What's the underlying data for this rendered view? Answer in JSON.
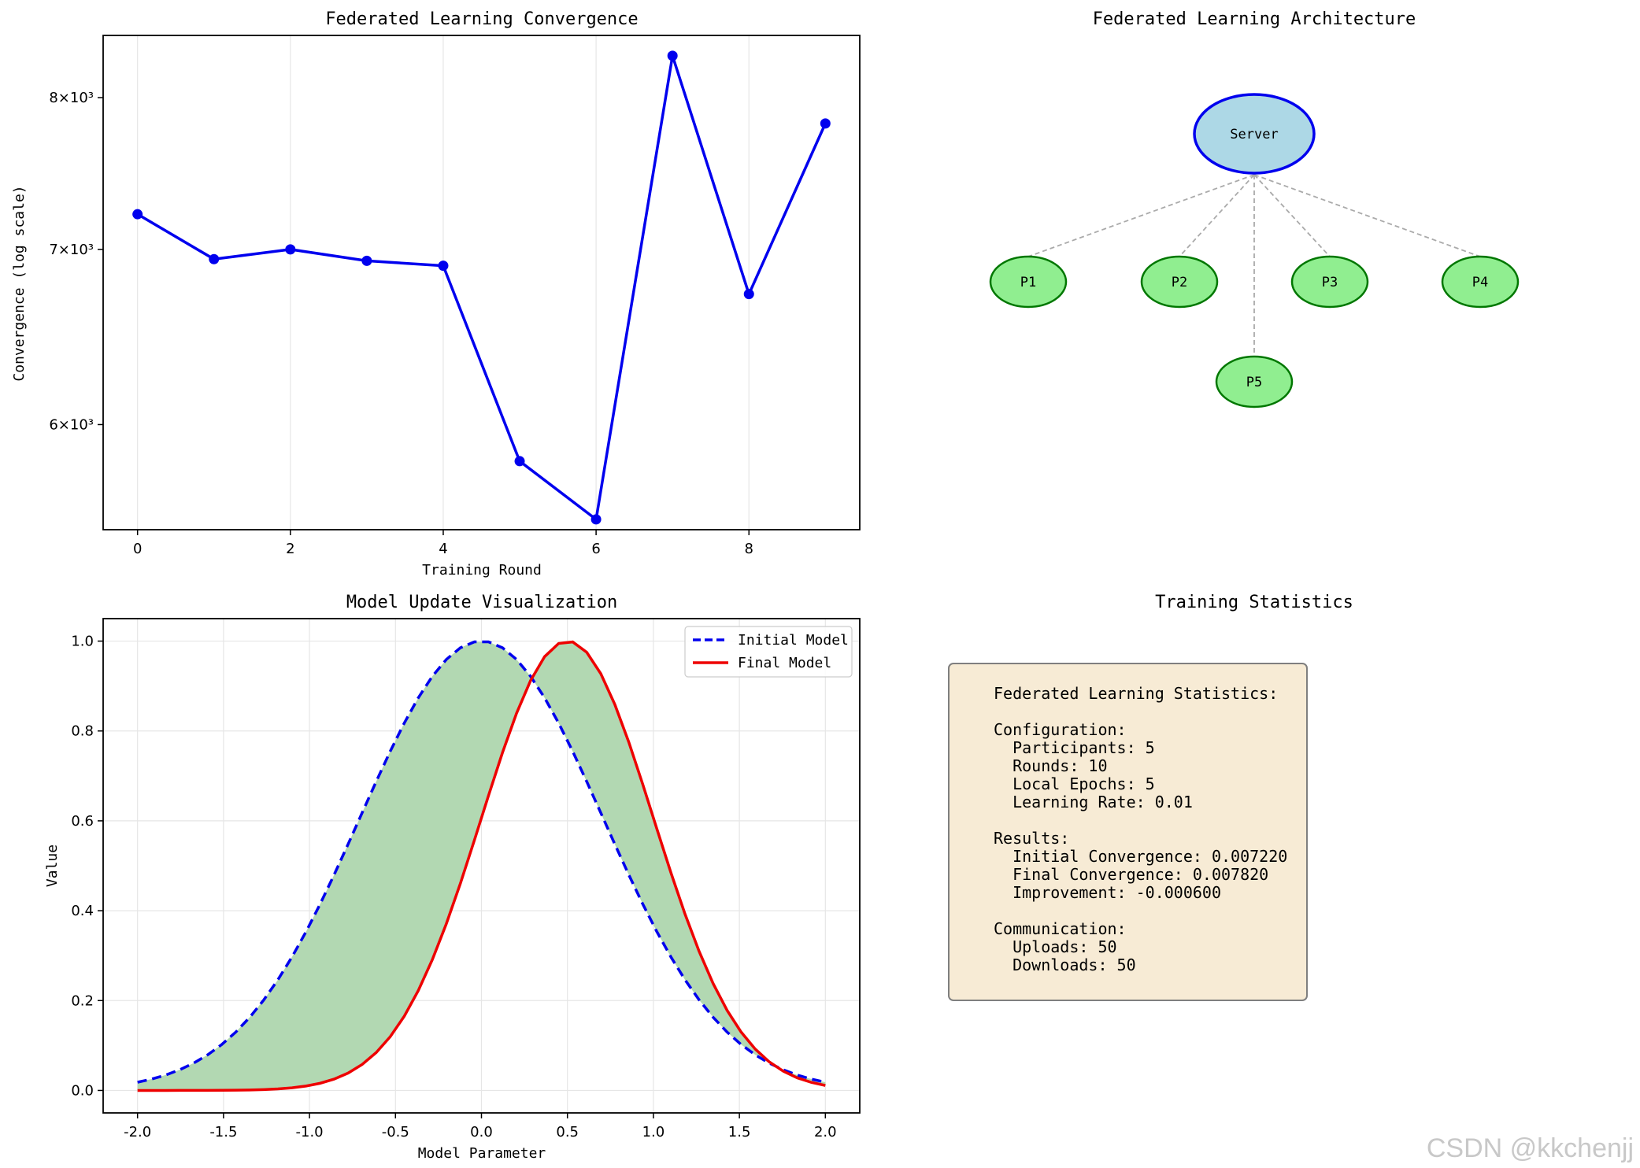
{
  "chart_data": [
    {
      "id": "convergence",
      "type": "line",
      "title": "Federated Learning Convergence",
      "xlabel": "Training Round",
      "ylabel": "Convergence (log scale)",
      "yscale": "log",
      "x": [
        0,
        1,
        2,
        3,
        4,
        5,
        6,
        7,
        8,
        9
      ],
      "values": [
        7220,
        6940,
        7000,
        6930,
        6900,
        5810,
        5520,
        8300,
        6730,
        7820
      ],
      "xticks": [
        "0",
        "2",
        "4",
        "6",
        "8"
      ],
      "yticks": [
        "6×10³",
        "7×10³",
        "8×10³"
      ],
      "xlim": [
        -0.45,
        9.45
      ],
      "ylim": [
        5470,
        8450
      ],
      "grid": "x",
      "color": "#0000ee"
    },
    {
      "id": "architecture",
      "type": "diagram",
      "title": "Federated Learning Architecture",
      "server": "Server",
      "participants": [
        "P1",
        "P2",
        "P3",
        "P4",
        "P5"
      ]
    },
    {
      "id": "model-update",
      "type": "line",
      "title": "Model Update Visualization",
      "xlabel": "Model Parameter",
      "ylabel": "Value",
      "xticks": [
        "-2.0",
        "-1.5",
        "-1.0",
        "-0.5",
        "0.0",
        "0.5",
        "1.0",
        "1.5",
        "2.0"
      ],
      "yticks": [
        "0.0",
        "0.2",
        "0.4",
        "0.6",
        "0.8",
        "1.0"
      ],
      "xlim": [
        -2.2,
        2.2
      ],
      "ylim": [
        -0.05,
        1.05
      ],
      "series": [
        {
          "name": "Initial Model",
          "function": "exp(-x^2)",
          "center": 0.0,
          "style": "dashed",
          "color": "#0000ee"
        },
        {
          "name": "Final Model",
          "function": "exp(-2(x-0.5)^2)",
          "center": 0.5,
          "style": "solid",
          "color": "#ee0000"
        }
      ],
      "fill_color": "#b2d8b2",
      "legend": "top-right"
    }
  ],
  "stats": {
    "title": "Training Statistics",
    "lines": [
      "Federated Learning Statistics:",
      "",
      "Configuration:",
      "  Participants: 5",
      "  Rounds: 10",
      "  Local Epochs: 5",
      "  Learning Rate: 0.01",
      "",
      "Results:",
      "  Initial Convergence: 0.007220",
      "  Final Convergence: 0.007820",
      "  Improvement: -0.000600",
      "",
      "Communication:",
      "  Uploads: 50",
      "  Downloads: 50"
    ]
  },
  "watermark": "CSDN @kkchenjj"
}
